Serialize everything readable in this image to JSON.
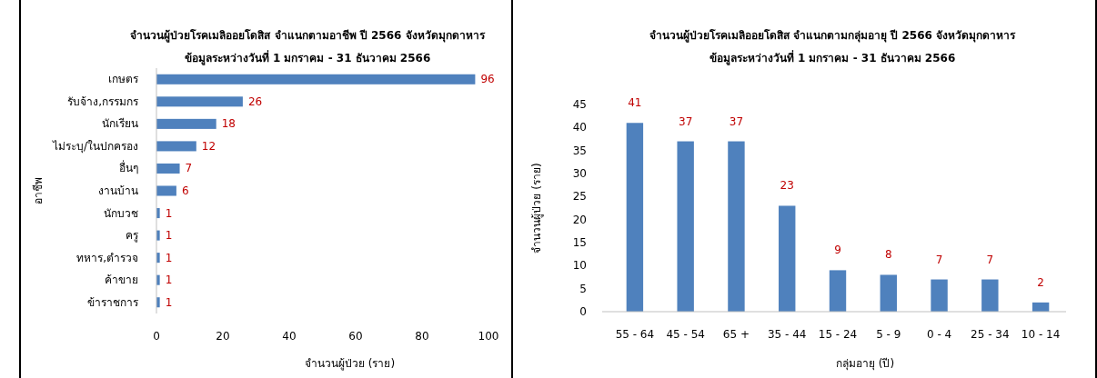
{
  "chart_data": [
    {
      "type": "bar",
      "orientation": "horizontal",
      "title": "จำนวนผู้ป่วยโรคเมลิออยโดสิส จำแนกตามอาชีพ ปี 2566  จังหวัดมุกดาหาร",
      "subtitle": "ข้อมูลระหว่างวันที่ 1 มกราคม - 31 ธันวาคม 2566",
      "xlabel": "จำนวนผู้ป่วย (ราย)",
      "ylabel": "อาชีพ",
      "categories": [
        "เกษตร",
        "รับจ้าง,กรรมกร",
        "นักเรียน",
        "ไม่ระบุ/ในปกครอง",
        "อื่นๆ",
        "งานบ้าน",
        "นักบวช",
        "ครู",
        "ทหาร,ตำรวจ",
        "ค้าขาย",
        "ข้าราชการ"
      ],
      "values": [
        96,
        26,
        18,
        12,
        7,
        6,
        1,
        1,
        1,
        1,
        1
      ],
      "color": "#4f81bd",
      "xlim": [
        0,
        100
      ],
      "xticks": [
        0,
        20,
        40,
        60,
        80,
        100
      ],
      "data_labels": true,
      "grid": false
    },
    {
      "type": "bar",
      "title": "จำนวนผู้ป่วยโรคเมลิออยโดสิส จำแนกตามกลุ่มอายุ ปี 2566  จังหวัดมุกดาหาร",
      "subtitle": "ข้อมูลระหว่างวันที่ 1 มกราคม - 31 ธันวาคม 2566",
      "xlabel": "กลุ่มอายุ (ปี)",
      "ylabel": "จำนวนผู้ป่วย (ราย)",
      "categories": [
        "55 - 64",
        "45 - 54",
        "65 +",
        "35 - 44",
        "15 - 24",
        "5 - 9",
        "0 - 4",
        "25 - 34",
        "10 - 14"
      ],
      "values": [
        41,
        37,
        37,
        23,
        9,
        8,
        7,
        7,
        2
      ],
      "color": "#4f81bd",
      "ylim": [
        0,
        45
      ],
      "yticks": [
        0,
        5,
        10,
        15,
        20,
        25,
        30,
        35,
        40,
        45
      ],
      "data_labels": true,
      "grid": false
    }
  ]
}
